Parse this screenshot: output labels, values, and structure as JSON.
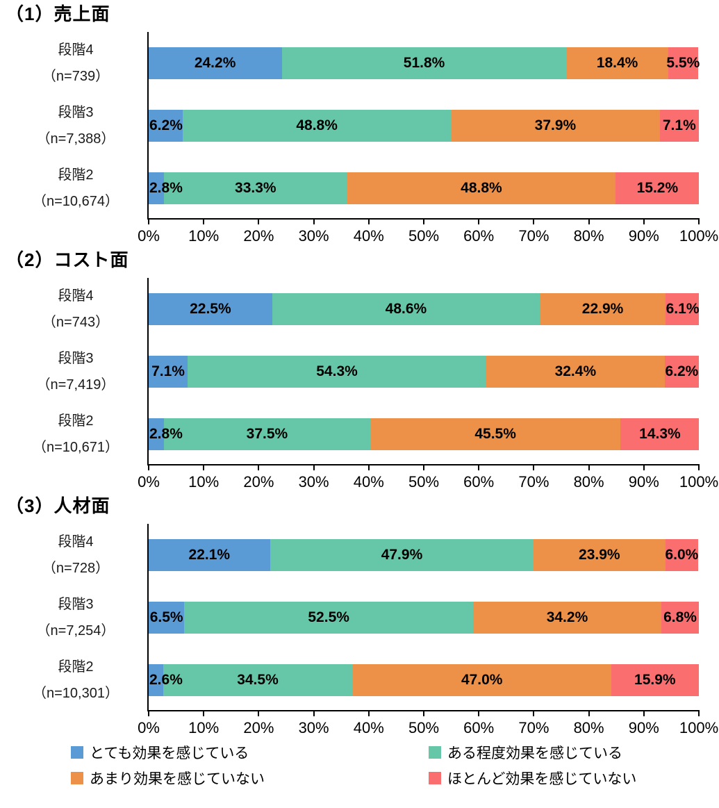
{
  "axis": {
    "min": 0,
    "max": 100,
    "tick_labels": [
      "0%",
      "10%",
      "20%",
      "30%",
      "40%",
      "50%",
      "60%",
      "70%",
      "80%",
      "90%",
      "100%"
    ]
  },
  "legend": {
    "position": "bottom",
    "items": [
      {
        "label": "とても効果を感じている",
        "color": "#5B9BD5"
      },
      {
        "label": "ある程度効果を感じている",
        "color": "#66C7A8"
      },
      {
        "label": "あまり効果を感じていない",
        "color": "#EE9148"
      },
      {
        "label": "ほとんど効果を感じていない",
        "color": "#FA6E70"
      }
    ]
  },
  "chart_data": [
    {
      "type": "bar",
      "stacked": true,
      "orientation": "horizontal",
      "title": "（1）売上面",
      "xlim": [
        0,
        100
      ],
      "categories": [
        "段階4",
        "段階3",
        "段階2"
      ],
      "category_sub": [
        "（n=739）",
        "（n=7,388）",
        "（n=10,674）"
      ],
      "series": [
        {
          "name": "とても効果を感じている",
          "values": [
            24.2,
            6.2,
            2.8
          ]
        },
        {
          "name": "ある程度効果を感じている",
          "values": [
            51.8,
            48.8,
            33.3
          ]
        },
        {
          "name": "あまり効果を感じていない",
          "values": [
            18.4,
            37.9,
            48.8
          ]
        },
        {
          "name": "ほとんど効果を感じていない",
          "values": [
            5.5,
            7.1,
            15.2
          ]
        }
      ]
    },
    {
      "type": "bar",
      "stacked": true,
      "orientation": "horizontal",
      "title": "（2）コスト面",
      "xlim": [
        0,
        100
      ],
      "categories": [
        "段階4",
        "段階3",
        "段階2"
      ],
      "category_sub": [
        "（n=743）",
        "（n=7,419）",
        "（n=10,671）"
      ],
      "series": [
        {
          "name": "とても効果を感じている",
          "values": [
            22.5,
            7.1,
            2.8
          ]
        },
        {
          "name": "ある程度効果を感じている",
          "values": [
            48.6,
            54.3,
            37.5
          ]
        },
        {
          "name": "あまり効果を感じていない",
          "values": [
            22.9,
            32.4,
            45.5
          ]
        },
        {
          "name": "ほとんど効果を感じていない",
          "values": [
            6.1,
            6.2,
            14.3
          ]
        }
      ]
    },
    {
      "type": "bar",
      "stacked": true,
      "orientation": "horizontal",
      "title": "（3）人材面",
      "xlim": [
        0,
        100
      ],
      "categories": [
        "段階4",
        "段階3",
        "段階2"
      ],
      "category_sub": [
        "（n=728）",
        "（n=7,254）",
        "（n=10,301）"
      ],
      "series": [
        {
          "name": "とても効果を感じている",
          "values": [
            22.1,
            6.5,
            2.6
          ]
        },
        {
          "name": "ある程度効果を感じている",
          "values": [
            47.9,
            52.5,
            34.5
          ]
        },
        {
          "name": "あまり効果を感じていない",
          "values": [
            23.9,
            34.2,
            47.0
          ]
        },
        {
          "name": "ほとんど効果を感じていない",
          "values": [
            6.0,
            6.8,
            15.9
          ]
        }
      ]
    }
  ]
}
